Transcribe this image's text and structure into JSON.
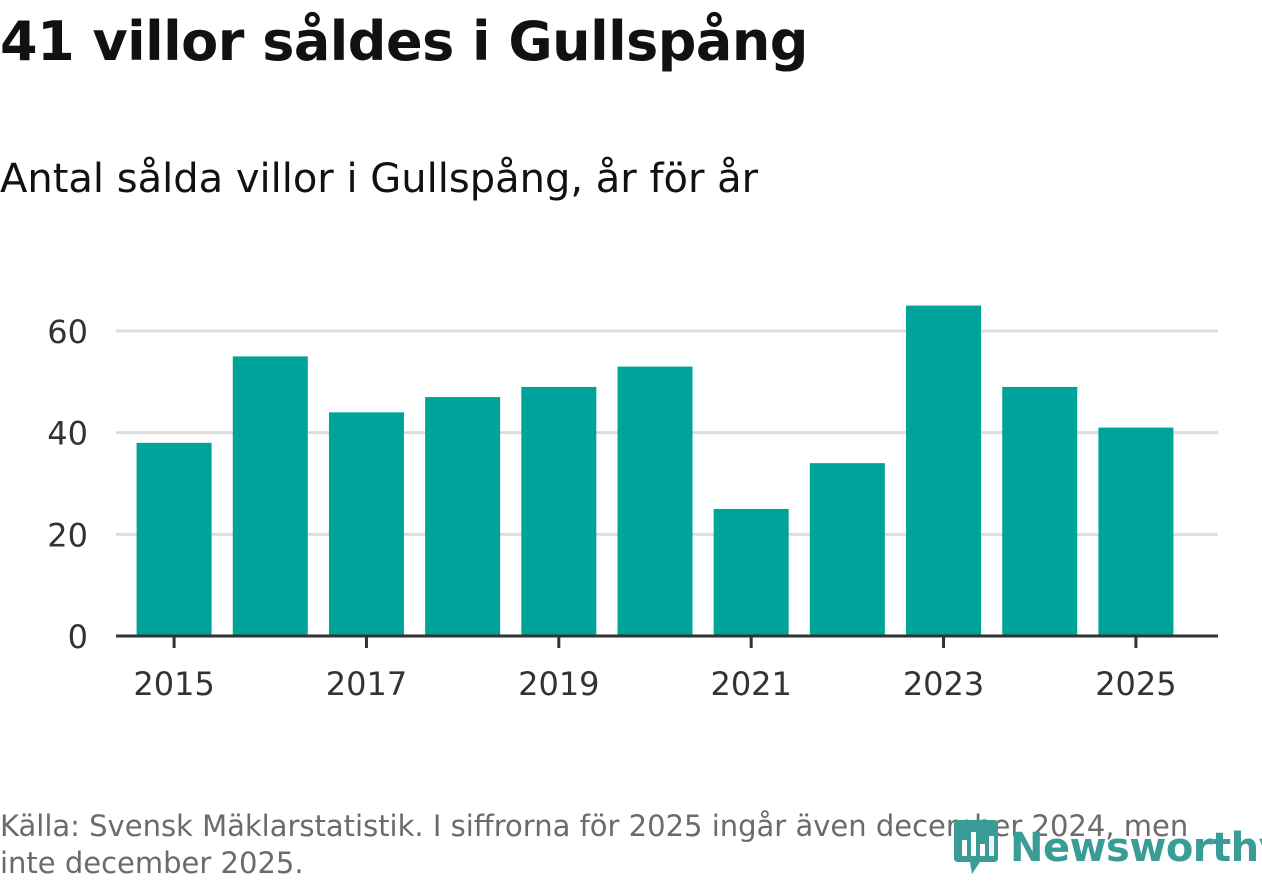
{
  "title": "41 villor såldes i Gullspång",
  "subtitle": "Antal sålda villor i Gullspång, år för år",
  "source": "Källa: Svensk Mäklarstatistik. I siffrorna för 2025 ingår även december 2024, men inte december 2025.",
  "brand": {
    "name": "Newsworthy",
    "icon": "newsworthy-logo-icon",
    "color": "#3a9c96"
  },
  "colors": {
    "bar": "#00a39a",
    "grid": "#dddddd",
    "axis": "#333333",
    "text": "#333333"
  },
  "chart_data": {
    "type": "bar",
    "categories": [
      "2015",
      "2016",
      "2017",
      "2018",
      "2019",
      "2020",
      "2021",
      "2022",
      "2023",
      "2024",
      "2025"
    ],
    "values": [
      38,
      55,
      44,
      47,
      49,
      53,
      25,
      34,
      65,
      49,
      41
    ],
    "xtick_labels": [
      "2015",
      "2017",
      "2019",
      "2021",
      "2023",
      "2025"
    ],
    "yticks": [
      0,
      20,
      40,
      60
    ],
    "ylim": [
      0,
      65
    ],
    "grid": true,
    "legend": "none"
  }
}
